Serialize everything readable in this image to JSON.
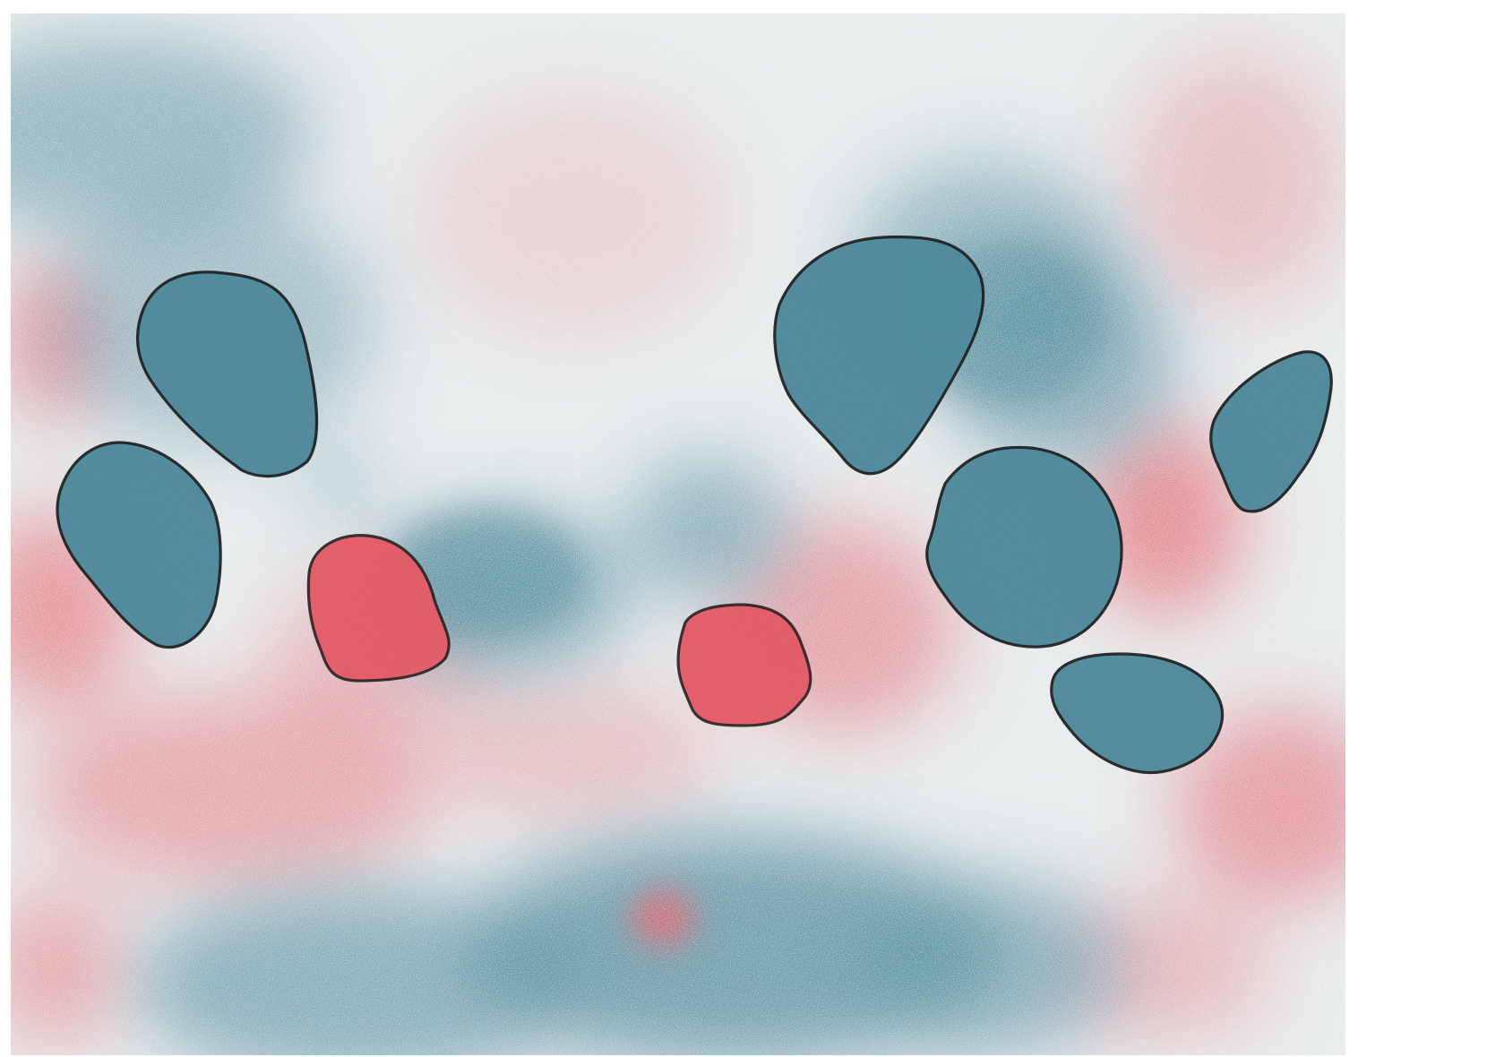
{
  "colors": {
    "background": "#ffffff",
    "neutral": "#e6eaeb",
    "teal": "#4f8a9b",
    "red": "#e25a66",
    "outline": "#1b1b1b"
  },
  "regions": [
    {
      "name": "region-outline-1",
      "fill": "teal"
    },
    {
      "name": "region-outline-2",
      "fill": "teal"
    },
    {
      "name": "region-outline-3",
      "fill": "red"
    },
    {
      "name": "region-outline-4",
      "fill": "red"
    },
    {
      "name": "region-outline-5",
      "fill": "teal"
    },
    {
      "name": "region-outline-6",
      "fill": "teal"
    },
    {
      "name": "region-outline-7",
      "fill": "teal"
    },
    {
      "name": "region-outline-8",
      "fill": "teal"
    }
  ]
}
